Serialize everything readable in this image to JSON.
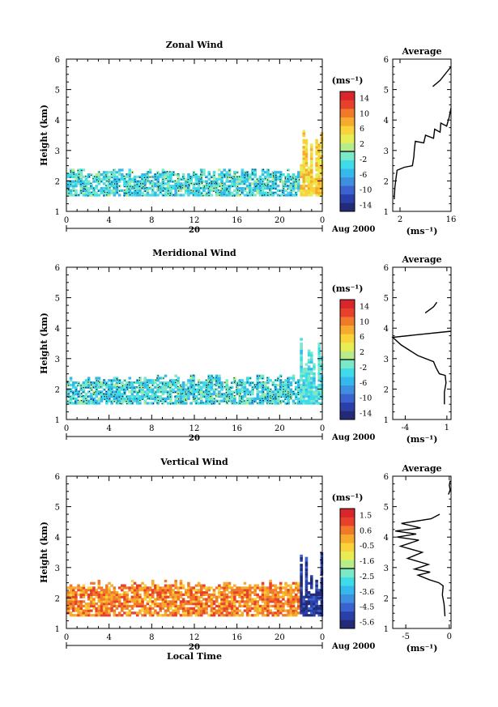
{
  "figure": {
    "xlabel": "Local Time",
    "date_label": "Aug 2000",
    "day_label": "20"
  },
  "chart_data": [
    {
      "type": "heatmap",
      "title": "Zonal Wind",
      "ylabel": "Height (km)",
      "xlim": [
        0,
        24
      ],
      "ylim": [
        1,
        6
      ],
      "x_ticks": [
        "0",
        "4",
        "8",
        "12",
        "16",
        "20",
        "0"
      ],
      "y_ticks": [
        "1",
        "2",
        "3",
        "4",
        "5",
        "6"
      ],
      "colorbar": {
        "unit": "(ms⁻¹)",
        "ticks": [
          "14",
          "10",
          "6",
          "2",
          "-2",
          "-6",
          "-10",
          "-14"
        ],
        "range": [
          -16,
          16
        ]
      },
      "field": {
        "main_band_km": [
          1.5,
          2.4
        ],
        "main_value": -3,
        "late_plume": {
          "x": [
            21.9,
            23.9
          ],
          "top_km": 3.7,
          "value": 6
        }
      },
      "profile": {
        "title": "Average",
        "xlabel": "(ms⁻¹)",
        "x_ticks": [
          "2",
          "16"
        ],
        "xlim": [
          0,
          16
        ],
        "y_ticks": [
          "1",
          "2",
          "3",
          "4",
          "5",
          "6"
        ],
        "points": [
          [
            0.4,
            1.4
          ],
          [
            0.6,
            1.8
          ],
          [
            0.9,
            2.1
          ],
          [
            1.2,
            2.35
          ],
          [
            3.2,
            2.45
          ],
          [
            5.4,
            2.5
          ],
          [
            5.8,
            2.8
          ],
          [
            5.9,
            3.0
          ],
          [
            6.2,
            3.3
          ],
          [
            8.5,
            3.25
          ],
          [
            9.0,
            3.5
          ],
          [
            11.2,
            3.4
          ],
          [
            11.5,
            3.7
          ],
          [
            13.0,
            3.6
          ],
          [
            13.2,
            3.9
          ],
          [
            14.8,
            3.8
          ],
          [
            15.5,
            4.1
          ],
          [
            16,
            4.4
          ],
          [
            null,
            null
          ],
          [
            11.0,
            5.1
          ],
          [
            13.0,
            5.3
          ],
          [
            15.0,
            5.6
          ],
          [
            16,
            5.75
          ]
        ]
      }
    },
    {
      "type": "heatmap",
      "title": "Meridional Wind",
      "ylabel": "Height (km)",
      "xlim": [
        0,
        24
      ],
      "ylim": [
        1,
        6
      ],
      "x_ticks": [
        "0",
        "4",
        "8",
        "12",
        "16",
        "20",
        "0"
      ],
      "y_ticks": [
        "1",
        "2",
        "3",
        "4",
        "5",
        "6"
      ],
      "colorbar": {
        "unit": "(ms⁻¹)",
        "ticks": [
          "14",
          "10",
          "6",
          "2",
          "-2",
          "-6",
          "-10",
          "-14"
        ],
        "range": [
          -16,
          16
        ]
      },
      "field": {
        "main_band_km": [
          1.5,
          2.45
        ],
        "main_value": -3,
        "late_plume": {
          "x": [
            21.9,
            23.9
          ],
          "top_km": 3.8,
          "value": -3
        }
      },
      "profile": {
        "title": "Average",
        "xlabel": "(ms⁻¹)",
        "x_ticks": [
          "-4",
          "1"
        ],
        "xlim": [
          -5.5,
          1.5
        ],
        "y_ticks": [
          "1",
          "2",
          "3",
          "4",
          "5",
          "6"
        ],
        "points": [
          [
            0.7,
            1.5
          ],
          [
            0.7,
            1.9
          ],
          [
            0.9,
            2.2
          ],
          [
            0.8,
            2.45
          ],
          [
            0.1,
            2.5
          ],
          [
            -0.3,
            2.7
          ],
          [
            -0.6,
            2.9
          ],
          [
            -2.5,
            3.1
          ],
          [
            -4.5,
            3.45
          ],
          [
            -5.5,
            3.7
          ],
          [
            1.5,
            3.9
          ],
          [
            null,
            null
          ],
          [
            -1.6,
            4.5
          ],
          [
            -0.6,
            4.7
          ],
          [
            -0.2,
            4.85
          ]
        ]
      }
    },
    {
      "type": "heatmap",
      "title": "Vertical Wind",
      "ylabel": "Height (km)",
      "xlim": [
        0,
        24
      ],
      "ylim": [
        1,
        6
      ],
      "x_ticks": [
        "0",
        "4",
        "8",
        "12",
        "16",
        "20",
        "0"
      ],
      "y_ticks": [
        "1",
        "2",
        "3",
        "4",
        "5",
        "6"
      ],
      "colorbar": {
        "unit": "(ms⁻¹)",
        "ticks": [
          "1.5",
          "0.6",
          "-0.5",
          "-1.6",
          "-2.5",
          "-3.6",
          "-4.5",
          "-5.6"
        ],
        "range": [
          -6,
          2
        ]
      },
      "field": {
        "main_band_km": [
          1.4,
          2.55
        ],
        "main_value": 0.4,
        "late_plume": {
          "x": [
            21.9,
            23.9
          ],
          "top_km": 3.6,
          "value": -5.3
        }
      },
      "profile": {
        "title": "Average",
        "xlabel": "(ms⁻¹)",
        "x_ticks": [
          "-5",
          "0"
        ],
        "xlim": [
          -6.5,
          0.2
        ],
        "y_ticks": [
          "1",
          "2",
          "3",
          "4",
          "5",
          "6"
        ],
        "points": [
          [
            -0.5,
            1.4
          ],
          [
            -0.6,
            1.8
          ],
          [
            -0.8,
            2.1
          ],
          [
            -0.7,
            2.4
          ],
          [
            -1.2,
            2.5
          ],
          [
            -2.3,
            2.6
          ],
          [
            -3.6,
            2.75
          ],
          [
            -2.2,
            2.85
          ],
          [
            -4.0,
            2.95
          ],
          [
            -2.4,
            3.1
          ],
          [
            -4.8,
            3.3
          ],
          [
            -3.1,
            3.5
          ],
          [
            -5.6,
            3.7
          ],
          [
            -3.5,
            3.9
          ],
          [
            -6.0,
            4.0
          ],
          [
            -3.8,
            4.1
          ],
          [
            -6.2,
            4.2
          ],
          [
            -3.3,
            4.3
          ],
          [
            -5.5,
            4.45
          ],
          [
            -2.1,
            4.6
          ],
          [
            -1.1,
            4.75
          ],
          [
            null,
            null
          ],
          [
            -0.1,
            5.4
          ],
          [
            0.1,
            5.55
          ],
          [
            0.0,
            5.7
          ],
          [
            0.1,
            5.85
          ]
        ]
      }
    }
  ]
}
